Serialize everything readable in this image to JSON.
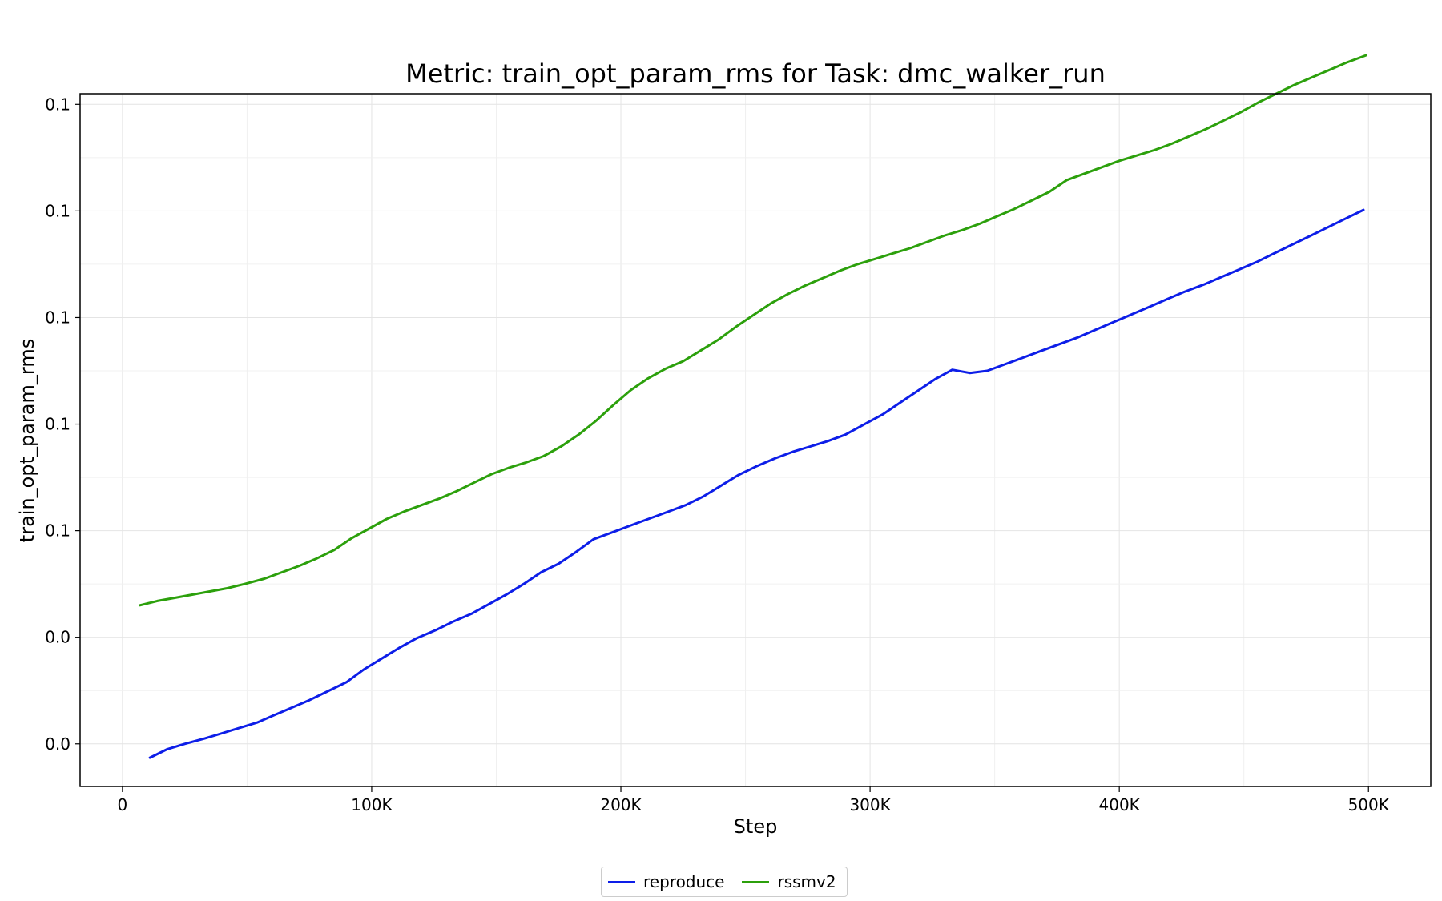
{
  "chart_data": {
    "type": "line",
    "title": "Metric: train_opt_param_rms for Task: dmc_walker_run",
    "xlabel": "Step",
    "ylabel": "train_opt_param_rms",
    "xlim": [
      -17000,
      525000
    ],
    "ylim": [
      -0.4,
      6.1
    ],
    "x_ticks": [
      0,
      100000,
      200000,
      300000,
      400000,
      500000
    ],
    "x_tick_labels": [
      "0",
      "100K",
      "200K",
      "300K",
      "400K",
      "500K"
    ],
    "y_ticks": [
      0,
      1,
      2,
      3,
      4,
      5,
      6
    ],
    "y_tick_labels": [
      "0.0",
      "0.0",
      "0.1",
      "0.1",
      "0.1",
      "0.1",
      "0.1"
    ],
    "grid": true,
    "legend_position": "bottom-center",
    "series": [
      {
        "name": "reproduce",
        "color": "#0d1ee8",
        "x": [
          11000,
          18000,
          25000,
          33000,
          40000,
          47000,
          54000,
          61000,
          68000,
          75000,
          82000,
          90000,
          97000,
          104000,
          111000,
          118000,
          126000,
          133000,
          140000,
          147000,
          154000,
          161000,
          168000,
          175000,
          182000,
          189000,
          196000,
          204000,
          211000,
          218000,
          226000,
          233000,
          240000,
          247000,
          254000,
          262000,
          269000,
          276000,
          283000,
          290000,
          297000,
          305000,
          312000,
          319000,
          326000,
          333000,
          340000,
          347000,
          354000,
          361000,
          369000,
          376000,
          383000,
          390000,
          398000,
          405000,
          412000,
          419000,
          426000,
          434000,
          441000,
          448000,
          455000,
          462000,
          469000,
          477000,
          484000,
          491000,
          498000
        ],
        "y": [
          -0.13,
          -0.05,
          0.0,
          0.05,
          0.1,
          0.15,
          0.2,
          0.27,
          0.34,
          0.41,
          0.49,
          0.58,
          0.7,
          0.8,
          0.9,
          0.99,
          1.07,
          1.15,
          1.22,
          1.31,
          1.4,
          1.5,
          1.61,
          1.69,
          1.8,
          1.92,
          1.98,
          2.05,
          2.11,
          2.17,
          2.24,
          2.32,
          2.42,
          2.52,
          2.6,
          2.68,
          2.74,
          2.79,
          2.84,
          2.9,
          2.99,
          3.09,
          3.2,
          3.31,
          3.42,
          3.51,
          3.48,
          3.5,
          3.56,
          3.62,
          3.69,
          3.75,
          3.81,
          3.88,
          3.96,
          4.03,
          4.1,
          4.17,
          4.24,
          4.31,
          4.38,
          4.45,
          4.52,
          4.6,
          4.68,
          4.77,
          4.85,
          4.93,
          5.01
        ]
      },
      {
        "name": "rssmv2",
        "color": "#2ca00c",
        "x": [
          7000,
          14000,
          21000,
          28000,
          35000,
          42000,
          49000,
          57000,
          64000,
          71000,
          78000,
          85000,
          92000,
          99000,
          106000,
          113000,
          120000,
          127000,
          134000,
          141000,
          148000,
          155000,
          162000,
          169000,
          176000,
          183000,
          190000,
          197000,
          204000,
          211000,
          218000,
          225000,
          232000,
          239000,
          246000,
          253000,
          260000,
          267000,
          274000,
          281000,
          288000,
          295000,
          302000,
          309000,
          316000,
          323000,
          330000,
          337000,
          344000,
          351000,
          358000,
          365000,
          372000,
          379000,
          386000,
          393000,
          400000,
          407000,
          414000,
          421000,
          428000,
          435000,
          442000,
          449000,
          456000,
          463000,
          470000,
          477000,
          484000,
          491000,
          499000
        ],
        "y": [
          1.3,
          1.34,
          1.37,
          1.4,
          1.43,
          1.46,
          1.5,
          1.55,
          1.61,
          1.67,
          1.74,
          1.82,
          1.93,
          2.02,
          2.11,
          2.18,
          2.24,
          2.3,
          2.37,
          2.45,
          2.53,
          2.59,
          2.64,
          2.7,
          2.79,
          2.9,
          3.03,
          3.18,
          3.32,
          3.43,
          3.52,
          3.59,
          3.69,
          3.79,
          3.91,
          4.02,
          4.13,
          4.22,
          4.3,
          4.37,
          4.44,
          4.5,
          4.55,
          4.6,
          4.65,
          4.71,
          4.77,
          4.82,
          4.88,
          4.95,
          5.02,
          5.1,
          5.18,
          5.29,
          5.35,
          5.41,
          5.47,
          5.52,
          5.57,
          5.63,
          5.7,
          5.77,
          5.85,
          5.93,
          6.02,
          6.1,
          6.18,
          6.25,
          6.32,
          6.39,
          6.46
        ]
      }
    ]
  }
}
